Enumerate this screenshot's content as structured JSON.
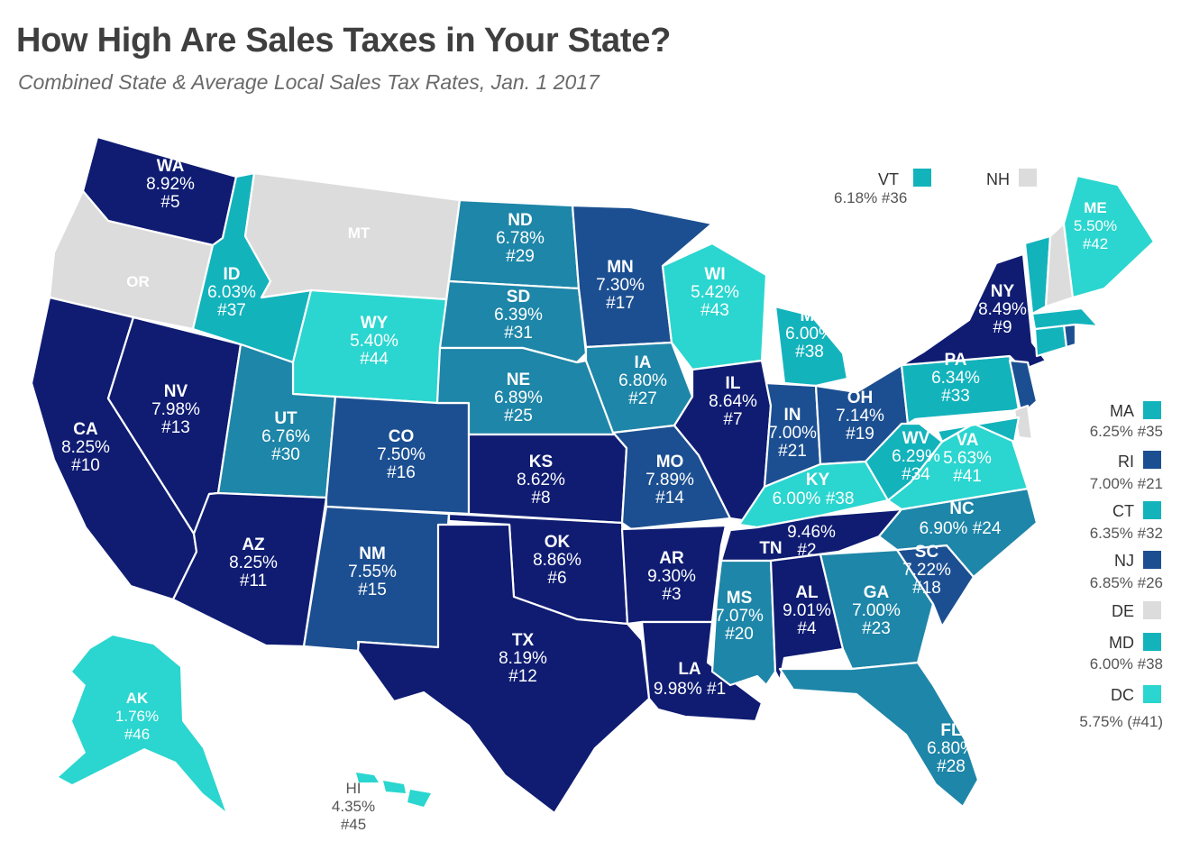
{
  "title": "How High Are Sales Taxes in Your State?",
  "subtitle": "Combined State & Average Local Sales Tax Rates, Jan. 1 2017",
  "colors": {
    "very_dark": "#0f1c72",
    "dark": "#1c4f91",
    "medium": "#1e86a8",
    "light": "#13b3bc",
    "very_light": "#2ad6cf",
    "none": "#dcdcdc",
    "border": "#ffffff"
  },
  "states": [
    {
      "abbr": "WA",
      "rate": "8.92%",
      "rank": "#5",
      "tier": "very_dark"
    },
    {
      "abbr": "OR",
      "rate": "",
      "rank": "",
      "tier": "none"
    },
    {
      "abbr": "CA",
      "rate": "8.25%",
      "rank": "#10",
      "tier": "very_dark"
    },
    {
      "abbr": "NV",
      "rate": "7.98%",
      "rank": "#13",
      "tier": "very_dark"
    },
    {
      "abbr": "ID",
      "rate": "6.03%",
      "rank": "#37",
      "tier": "light"
    },
    {
      "abbr": "MT",
      "rate": "",
      "rank": "",
      "tier": "none"
    },
    {
      "abbr": "WY",
      "rate": "5.40%",
      "rank": "#44",
      "tier": "very_light"
    },
    {
      "abbr": "UT",
      "rate": "6.76%",
      "rank": "#30",
      "tier": "medium"
    },
    {
      "abbr": "AZ",
      "rate": "8.25%",
      "rank": "#11",
      "tier": "very_dark"
    },
    {
      "abbr": "CO",
      "rate": "7.50%",
      "rank": "#16",
      "tier": "dark"
    },
    {
      "abbr": "NM",
      "rate": "7.55%",
      "rank": "#15",
      "tier": "dark"
    },
    {
      "abbr": "ND",
      "rate": "6.78%",
      "rank": "#29",
      "tier": "medium"
    },
    {
      "abbr": "SD",
      "rate": "6.39%",
      "rank": "#31",
      "tier": "medium"
    },
    {
      "abbr": "NE",
      "rate": "6.89%",
      "rank": "#25",
      "tier": "medium"
    },
    {
      "abbr": "KS",
      "rate": "8.62%",
      "rank": "#8",
      "tier": "very_dark"
    },
    {
      "abbr": "OK",
      "rate": "8.86%",
      "rank": "#6",
      "tier": "very_dark"
    },
    {
      "abbr": "TX",
      "rate": "8.19%",
      "rank": "#12",
      "tier": "very_dark"
    },
    {
      "abbr": "MN",
      "rate": "7.30%",
      "rank": "#17",
      "tier": "dark"
    },
    {
      "abbr": "IA",
      "rate": "6.80%",
      "rank": "#27",
      "tier": "medium"
    },
    {
      "abbr": "MO",
      "rate": "7.89%",
      "rank": "#14",
      "tier": "dark"
    },
    {
      "abbr": "AR",
      "rate": "9.30%",
      "rank": "#3",
      "tier": "very_dark"
    },
    {
      "abbr": "LA",
      "rate": "9.98% #1",
      "rank": "",
      "tier": "very_dark"
    },
    {
      "abbr": "WI",
      "rate": "5.42%",
      "rank": "#43",
      "tier": "very_light"
    },
    {
      "abbr": "IL",
      "rate": "8.64%",
      "rank": "#7",
      "tier": "very_dark"
    },
    {
      "abbr": "MI",
      "rate": "6.00%",
      "rank": "#38",
      "tier": "light"
    },
    {
      "abbr": "IN",
      "rate": "7.00%",
      "rank": "#21",
      "tier": "dark"
    },
    {
      "abbr": "OH",
      "rate": "7.14%",
      "rank": "#19",
      "tier": "dark"
    },
    {
      "abbr": "KY",
      "rate": "6.00% #38",
      "rank": "",
      "tier": "very_light"
    },
    {
      "abbr": "TN",
      "rate": "9.46%",
      "rank": "#2",
      "tier": "very_dark"
    },
    {
      "abbr": "MS",
      "rate": "7.07%",
      "rank": "#20",
      "tier": "medium"
    },
    {
      "abbr": "AL",
      "rate": "9.01%",
      "rank": "#4",
      "tier": "very_dark"
    },
    {
      "abbr": "GA",
      "rate": "7.00%",
      "rank": "#23",
      "tier": "medium"
    },
    {
      "abbr": "FL",
      "rate": "6.80%",
      "rank": "#28",
      "tier": "medium"
    },
    {
      "abbr": "SC",
      "rate": "7.22%",
      "rank": "#18",
      "tier": "dark"
    },
    {
      "abbr": "NC",
      "rate": "6.90% #24",
      "rank": "",
      "tier": "medium"
    },
    {
      "abbr": "VA",
      "rate": "5.63%",
      "rank": "#41",
      "tier": "very_light"
    },
    {
      "abbr": "WV",
      "rate": "6.29%",
      "rank": "#34",
      "tier": "light"
    },
    {
      "abbr": "PA",
      "rate": "6.34%",
      "rank": "#33",
      "tier": "light"
    },
    {
      "abbr": "NY",
      "rate": "8.49%",
      "rank": "#9",
      "tier": "very_dark"
    },
    {
      "abbr": "ME",
      "rate": "5.50%",
      "rank": "#42",
      "tier": "very_light"
    },
    {
      "abbr": "AK",
      "rate": "1.76%",
      "rank": "#46",
      "tier": "very_light"
    },
    {
      "abbr": "HI",
      "rate": "4.35%",
      "rank": "#45",
      "tier": "very_light"
    }
  ],
  "side_labels": [
    {
      "abbr": "VT",
      "text": "6.18% #36",
      "tier": "light"
    },
    {
      "abbr": "NH",
      "text": "",
      "tier": "none"
    },
    {
      "abbr": "MA",
      "text": "6.25% #35",
      "tier": "light"
    },
    {
      "abbr": "RI",
      "text": "7.00% #21",
      "tier": "dark"
    },
    {
      "abbr": "CT",
      "text": "6.35% #32",
      "tier": "light"
    },
    {
      "abbr": "NJ",
      "text": "6.85% #26",
      "tier": "dark"
    },
    {
      "abbr": "DE",
      "text": "",
      "tier": "none"
    },
    {
      "abbr": "MD",
      "text": "6.00% #38",
      "tier": "light"
    },
    {
      "abbr": "DC",
      "text": "5.75% (#41)",
      "tier": "very_light"
    }
  ]
}
